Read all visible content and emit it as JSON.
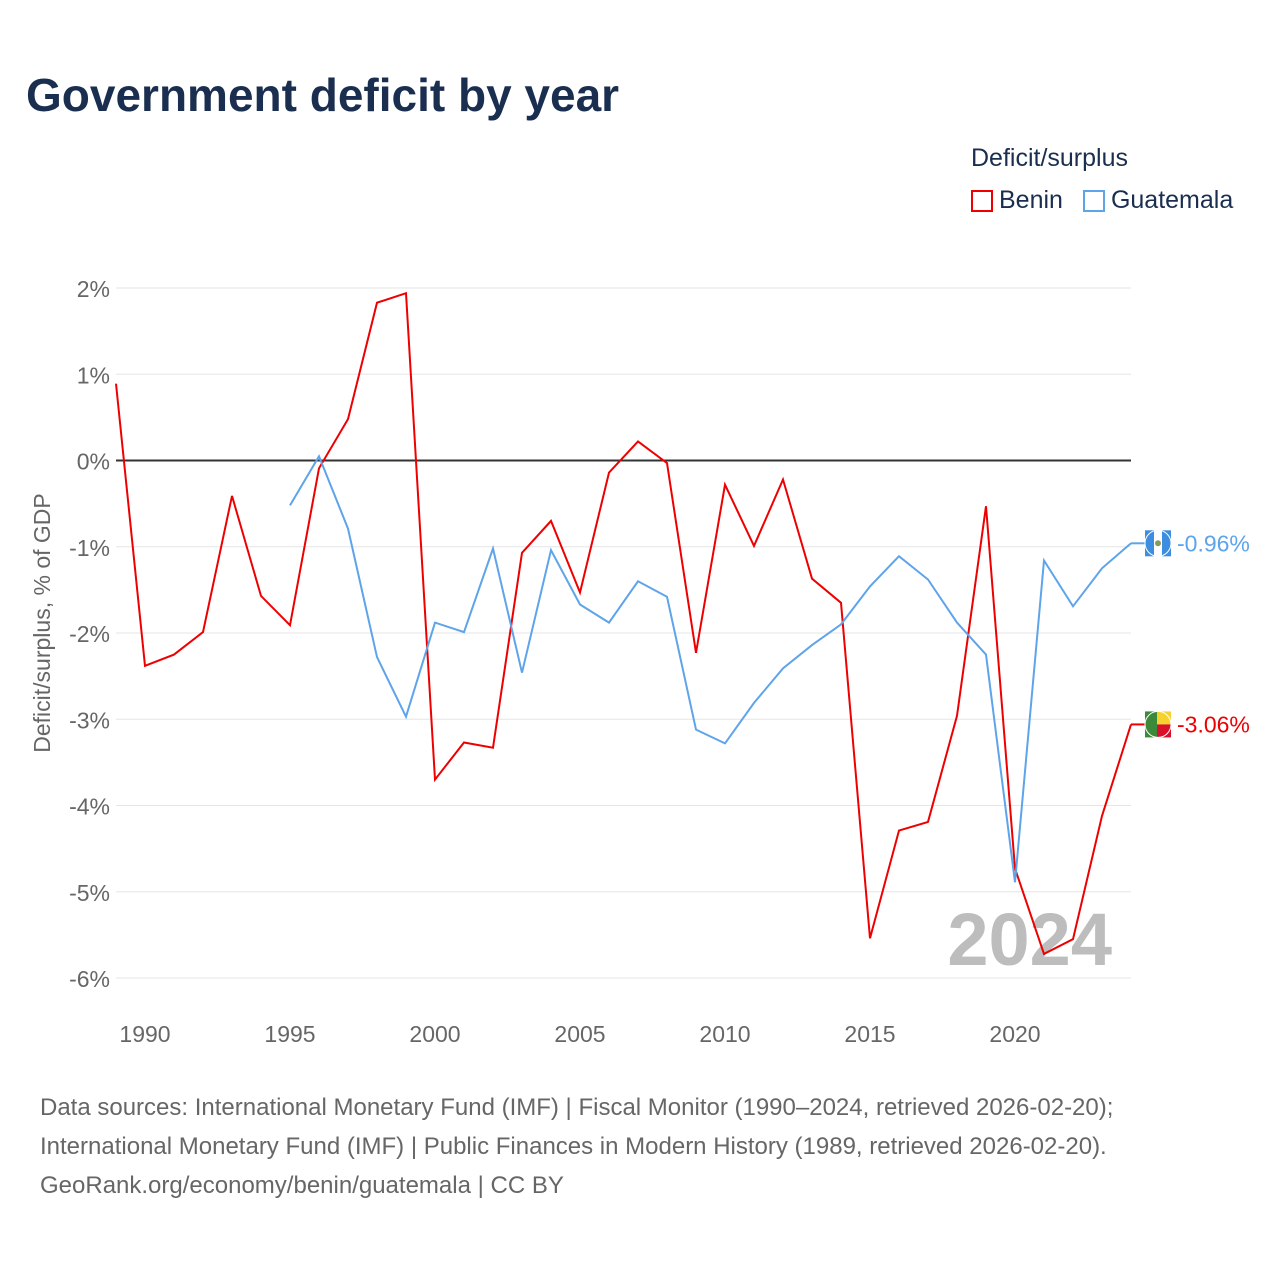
{
  "title": "Government deficit by year",
  "legend": {
    "title": "Deficit/surplus",
    "items": [
      {
        "name": "Benin",
        "color": "#ee0000"
      },
      {
        "name": "Guatemala",
        "color": "#5ea4ea"
      }
    ]
  },
  "watermark_year": "2024",
  "footer": [
    "Data sources: International Monetary Fund (IMF) | Fiscal Monitor (1990–2024, retrieved 2026-02-20);",
    "International Monetary Fund (IMF) | Public Finances in Modern History (1989, retrieved 2026-02-20).",
    "GeoRank.org/economy/benin/guatemala | CC BY"
  ],
  "chart_data": {
    "type": "line",
    "title": "Government deficit by year",
    "xlabel": "",
    "ylabel": "Deficit/surplus, % of GDP",
    "xlim": [
      1989,
      2024
    ],
    "ylim": [
      -6,
      2
    ],
    "xticks": [
      1990,
      1995,
      2000,
      2005,
      2010,
      2015,
      2020
    ],
    "yticks": [
      2,
      1,
      0,
      -1,
      -2,
      -3,
      -4,
      -5,
      -6
    ],
    "ytick_labels": [
      "2%",
      "1%",
      "0%",
      "-1%",
      "-2%",
      "-3%",
      "-4%",
      "-5%",
      "-6%"
    ],
    "grid": true,
    "legend_position": "top-right",
    "series": [
      {
        "name": "Benin",
        "color": "#ee0000",
        "end_label": "-3.06%",
        "x": [
          1989,
          1990,
          1991,
          1992,
          1993,
          1994,
          1995,
          1996,
          1997,
          1998,
          1999,
          2000,
          2001,
          2002,
          2003,
          2004,
          2005,
          2006,
          2007,
          2008,
          2009,
          2010,
          2011,
          2012,
          2013,
          2014,
          2015,
          2016,
          2017,
          2018,
          2019,
          2020,
          2021,
          2022,
          2023,
          2024
        ],
        "values": [
          0.89,
          -2.38,
          -2.25,
          -1.99,
          -0.41,
          -1.57,
          -1.91,
          -0.09,
          0.48,
          1.83,
          1.94,
          -3.7,
          -3.27,
          -3.33,
          -1.07,
          -0.7,
          -1.53,
          -0.14,
          0.22,
          -0.03,
          -2.23,
          -0.28,
          -0.99,
          -0.22,
          -1.37,
          -1.65,
          -5.54,
          -4.29,
          -4.19,
          -2.96,
          -0.53,
          -4.73,
          -5.72,
          -5.55,
          -4.12,
          -3.06
        ]
      },
      {
        "name": "Guatemala",
        "color": "#5ea4ea",
        "end_label": "-0.96%",
        "x": [
          1995,
          1996,
          1997,
          1998,
          1999,
          2000,
          2001,
          2002,
          2003,
          2004,
          2005,
          2006,
          2007,
          2008,
          2009,
          2010,
          2011,
          2012,
          2013,
          2014,
          2015,
          2016,
          2017,
          2018,
          2019,
          2020,
          2021,
          2022,
          2023,
          2024
        ],
        "values": [
          -0.52,
          0.05,
          -0.79,
          -2.28,
          -2.97,
          -1.88,
          -1.99,
          -1.02,
          -2.46,
          -1.04,
          -1.67,
          -1.88,
          -1.4,
          -1.58,
          -3.12,
          -3.28,
          -2.81,
          -2.41,
          -2.14,
          -1.9,
          -1.46,
          -1.11,
          -1.38,
          -1.88,
          -2.25,
          -4.89,
          -1.16,
          -1.69,
          -1.25,
          -0.96
        ]
      }
    ]
  }
}
